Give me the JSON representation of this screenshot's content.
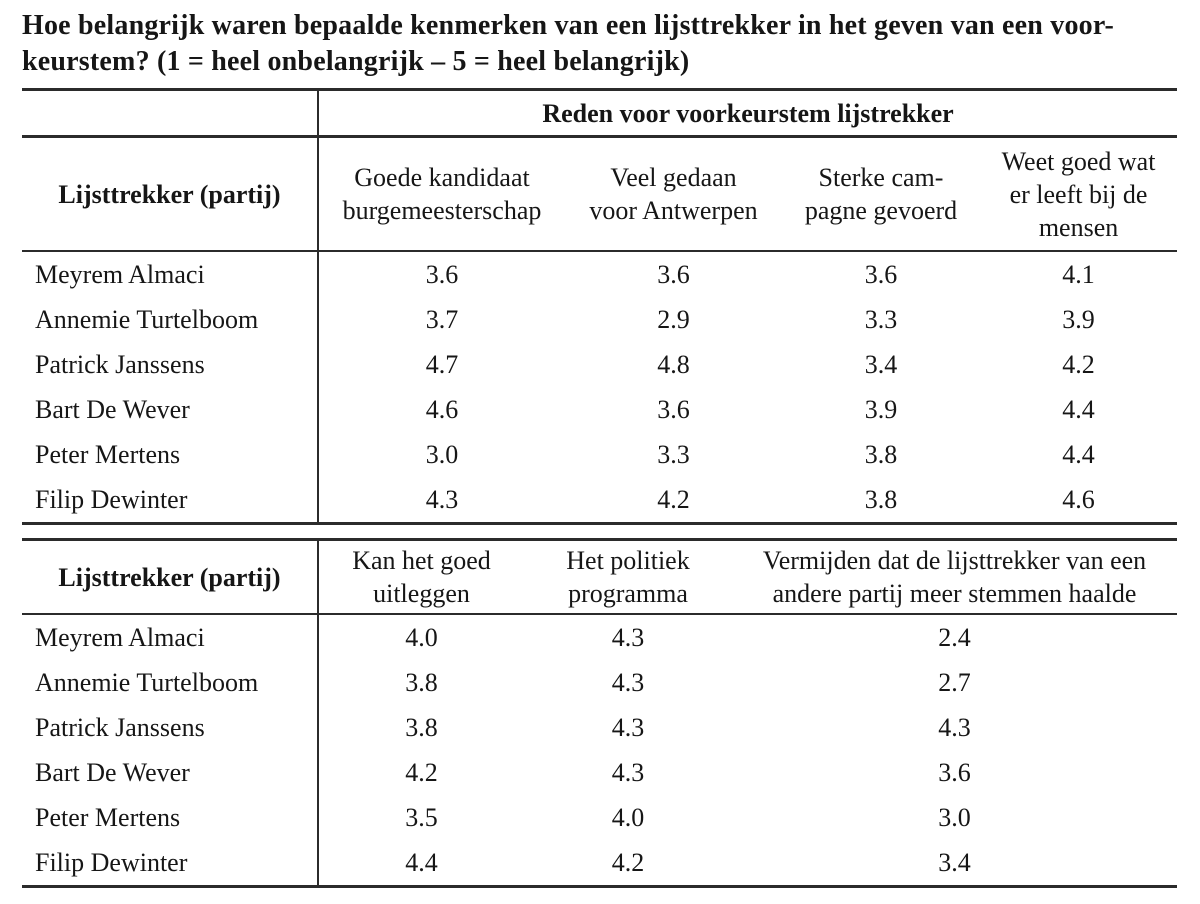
{
  "title": {
    "lines": [
      "Hoe belangrijk waren bepaalde kenmerken van een lijsttrekker in het geven van een voor-",
      "keurstem? (1 = heel onbelangrijk – 5 = heel belangrijk)"
    ]
  },
  "table1": {
    "span_header": "Reden voor voorkeurstem lijstrekker",
    "row_header": "Lijsttrekker (partij)",
    "columns": [
      [
        "Goede kandidaat",
        "burgemeesterschap"
      ],
      [
        "Veel gedaan",
        "voor Antwerpen"
      ],
      [
        "Sterke cam-",
        "pagne gevoerd"
      ],
      [
        "Weet goed wat",
        "er leeft bij de",
        "mensen"
      ]
    ],
    "rows": [
      {
        "name": "Meyrem Almaci",
        "values": [
          "3.6",
          "3.6",
          "3.6",
          "4.1"
        ]
      },
      {
        "name": "Annemie Turtelboom",
        "values": [
          "3.7",
          "2.9",
          "3.3",
          "3.9"
        ]
      },
      {
        "name": "Patrick Janssens",
        "values": [
          "4.7",
          "4.8",
          "3.4",
          "4.2"
        ]
      },
      {
        "name": "Bart De Wever",
        "values": [
          "4.6",
          "3.6",
          "3.9",
          "4.4"
        ]
      },
      {
        "name": "Peter Mertens",
        "values": [
          "3.0",
          "3.3",
          "3.8",
          "4.4"
        ]
      },
      {
        "name": "Filip Dewinter",
        "values": [
          "4.3",
          "4.2",
          "3.8",
          "4.6"
        ]
      }
    ]
  },
  "table2": {
    "row_header": "Lijsttrekker (partij)",
    "columns": [
      [
        "Kan het goed",
        "uitleggen"
      ],
      [
        "Het politiek",
        "programma"
      ],
      [
        "Vermijden dat de lijsttrekker van een",
        "andere partij meer stemmen haalde"
      ]
    ],
    "rows": [
      {
        "name": "Meyrem Almaci",
        "values": [
          "4.0",
          "4.3",
          "2.4"
        ]
      },
      {
        "name": "Annemie Turtelboom",
        "values": [
          "3.8",
          "4.3",
          "2.7"
        ]
      },
      {
        "name": "Patrick Janssens",
        "values": [
          "3.8",
          "4.3",
          "4.3"
        ]
      },
      {
        "name": "Bart De Wever",
        "values": [
          "4.2",
          "4.3",
          "3.6"
        ]
      },
      {
        "name": "Peter Mertens",
        "values": [
          "3.5",
          "4.0",
          "3.0"
        ]
      },
      {
        "name": "Filip Dewinter",
        "values": [
          "4.4",
          "4.2",
          "3.4"
        ]
      }
    ]
  }
}
